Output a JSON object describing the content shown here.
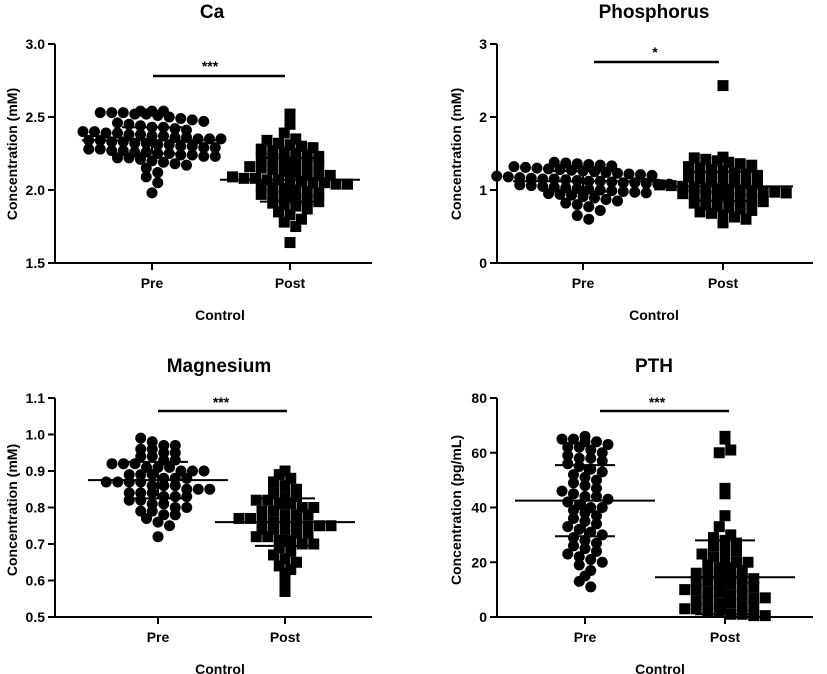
{
  "colors": {
    "marker": "#000000",
    "background": "#ffffff"
  },
  "chart_data": [
    {
      "type": "scatter",
      "title": "Ca",
      "xlabel": "Control",
      "ylabel": "Concentration (mM)",
      "categories": [
        "Pre",
        "Post"
      ],
      "ylim": [
        1.5,
        3.0
      ],
      "yticks": [
        1.5,
        2.0,
        2.5,
        3.0
      ],
      "ytick_labels": [
        "1.5",
        "2.0",
        "2.5",
        "3.0"
      ],
      "markers": [
        "circle",
        "square"
      ],
      "significance": "***",
      "series": [
        {
          "name": "Pre",
          "mean": 2.34,
          "sd": 0.09,
          "values": [
            2.54,
            2.54,
            2.54,
            2.53,
            2.53,
            2.53,
            2.52,
            2.52,
            2.51,
            2.5,
            2.49,
            2.48,
            2.47,
            2.46,
            2.45,
            2.44,
            2.43,
            2.43,
            2.42,
            2.41,
            2.4,
            2.4,
            2.39,
            2.39,
            2.38,
            2.38,
            2.37,
            2.37,
            2.36,
            2.36,
            2.35,
            2.35,
            2.35,
            2.34,
            2.34,
            2.33,
            2.33,
            2.32,
            2.32,
            2.31,
            2.31,
            2.3,
            2.3,
            2.29,
            2.29,
            2.28,
            2.28,
            2.27,
            2.27,
            2.26,
            2.26,
            2.25,
            2.25,
            2.24,
            2.24,
            2.23,
            2.23,
            2.22,
            2.22,
            2.21,
            2.2,
            2.19,
            2.18,
            2.17,
            2.15,
            2.12,
            2.09,
            2.05,
            1.98
          ]
        },
        {
          "name": "Post",
          "mean": 2.07,
          "sd": 0.15,
          "values": [
            2.52,
            2.45,
            2.39,
            2.35,
            2.34,
            2.32,
            2.31,
            2.3,
            2.29,
            2.28,
            2.27,
            2.26,
            2.25,
            2.24,
            2.23,
            2.22,
            2.21,
            2.2,
            2.19,
            2.18,
            2.17,
            2.16,
            2.15,
            2.14,
            2.13,
            2.12,
            2.11,
            2.1,
            2.1,
            2.09,
            2.08,
            2.08,
            2.07,
            2.07,
            2.06,
            2.06,
            2.05,
            2.05,
            2.04,
            2.04,
            2.03,
            2.02,
            2.01,
            2.0,
            1.99,
            1.98,
            1.97,
            1.96,
            1.95,
            1.94,
            1.93,
            1.92,
            1.91,
            1.9,
            1.89,
            1.87,
            1.85,
            1.83,
            1.8,
            1.78,
            1.75,
            1.64
          ]
        }
      ]
    },
    {
      "type": "scatter",
      "title": "Phosphorus",
      "xlabel": "Control",
      "ylabel": "Concentration (mM)",
      "categories": [
        "Pre",
        "Post"
      ],
      "ylim": [
        0,
        3
      ],
      "yticks": [
        0,
        1,
        2,
        3
      ],
      "ytick_labels": [
        "0",
        "1",
        "2",
        "3"
      ],
      "markers": [
        "circle",
        "square"
      ],
      "significance": "*",
      "series": [
        {
          "name": "Pre",
          "mean": 1.12,
          "sd": 0.14,
          "values": [
            1.38,
            1.37,
            1.36,
            1.35,
            1.34,
            1.33,
            1.32,
            1.31,
            1.3,
            1.29,
            1.28,
            1.27,
            1.26,
            1.25,
            1.24,
            1.23,
            1.22,
            1.21,
            1.2,
            1.19,
            1.18,
            1.17,
            1.16,
            1.15,
            1.15,
            1.14,
            1.13,
            1.12,
            1.12,
            1.11,
            1.1,
            1.1,
            1.09,
            1.08,
            1.08,
            1.07,
            1.06,
            1.05,
            1.04,
            1.03,
            1.02,
            1.01,
            1.0,
            0.99,
            0.98,
            0.97,
            0.96,
            0.95,
            0.94,
            0.93,
            0.91,
            0.89,
            0.87,
            0.85,
            0.82,
            0.8,
            0.77,
            0.72,
            0.65,
            0.6
          ]
        },
        {
          "name": "Post",
          "mean": 1.05,
          "sd": 0.2,
          "values": [
            2.43,
            1.45,
            1.44,
            1.42,
            1.4,
            1.38,
            1.36,
            1.34,
            1.32,
            1.3,
            1.28,
            1.26,
            1.24,
            1.22,
            1.2,
            1.18,
            1.16,
            1.14,
            1.12,
            1.1,
            1.09,
            1.08,
            1.07,
            1.06,
            1.05,
            1.04,
            1.03,
            1.02,
            1.01,
            1.0,
            0.99,
            0.98,
            0.97,
            0.96,
            0.95,
            0.94,
            0.93,
            0.92,
            0.9,
            0.88,
            0.86,
            0.84,
            0.82,
            0.8,
            0.78,
            0.76,
            0.74,
            0.72,
            0.7,
            0.68,
            0.66,
            0.63,
            0.6,
            0.55
          ]
        }
      ]
    },
    {
      "type": "scatter",
      "title": "Magnesium",
      "xlabel": "Control",
      "ylabel": "Concentration (mM)",
      "categories": [
        "Pre",
        "Post"
      ],
      "ylim": [
        0.5,
        1.1
      ],
      "yticks": [
        0.5,
        0.6,
        0.7,
        0.8,
        0.9,
        1.0,
        1.1
      ],
      "ytick_labels": [
        "0.5",
        "0.6",
        "0.7",
        "0.8",
        "0.9",
        "1.0",
        "1.1"
      ],
      "markers": [
        "circle",
        "square"
      ],
      "significance": "***",
      "series": [
        {
          "name": "Pre",
          "mean": 0.875,
          "sd": 0.05,
          "values": [
            0.99,
            0.98,
            0.97,
            0.97,
            0.96,
            0.96,
            0.95,
            0.95,
            0.94,
            0.94,
            0.93,
            0.93,
            0.92,
            0.92,
            0.92,
            0.91,
            0.91,
            0.91,
            0.9,
            0.9,
            0.9,
            0.89,
            0.89,
            0.89,
            0.88,
            0.88,
            0.88,
            0.87,
            0.87,
            0.87,
            0.87,
            0.86,
            0.86,
            0.86,
            0.85,
            0.85,
            0.85,
            0.84,
            0.84,
            0.84,
            0.83,
            0.83,
            0.83,
            0.82,
            0.82,
            0.81,
            0.81,
            0.8,
            0.8,
            0.79,
            0.79,
            0.78,
            0.78,
            0.77,
            0.76,
            0.75,
            0.72
          ]
        },
        {
          "name": "Post",
          "mean": 0.76,
          "sd": 0.065,
          "values": [
            0.9,
            0.89,
            0.88,
            0.87,
            0.86,
            0.85,
            0.84,
            0.83,
            0.83,
            0.82,
            0.82,
            0.81,
            0.81,
            0.8,
            0.8,
            0.79,
            0.79,
            0.78,
            0.78,
            0.78,
            0.77,
            0.77,
            0.77,
            0.76,
            0.76,
            0.76,
            0.75,
            0.75,
            0.75,
            0.74,
            0.74,
            0.74,
            0.73,
            0.73,
            0.72,
            0.72,
            0.71,
            0.71,
            0.7,
            0.7,
            0.69,
            0.68,
            0.67,
            0.66,
            0.65,
            0.64,
            0.63,
            0.62,
            0.6,
            0.57
          ]
        }
      ]
    },
    {
      "type": "scatter",
      "title": "PTH",
      "xlabel": "Control",
      "ylabel": "Concentration (pg/mL)",
      "categories": [
        "Pre",
        "Post"
      ],
      "ylim": [
        0,
        80
      ],
      "yticks": [
        0,
        20,
        40,
        60,
        80
      ],
      "ytick_labels": [
        "0",
        "20",
        "40",
        "60",
        "80"
      ],
      "markers": [
        "circle",
        "square"
      ],
      "significance": "***",
      "series": [
        {
          "name": "Pre",
          "mean": 42.5,
          "sd": 13.0,
          "values": [
            66,
            65,
            65,
            64,
            64,
            63,
            62,
            62,
            61,
            60,
            59,
            58,
            58,
            57,
            56,
            55,
            54,
            53,
            52,
            51,
            50,
            49,
            48,
            47,
            46,
            45,
            44,
            44,
            43,
            42,
            41,
            40,
            40,
            39,
            38,
            37,
            36,
            35,
            34,
            33,
            32,
            31,
            30,
            29,
            28,
            27,
            26,
            25,
            24,
            23,
            22,
            21,
            20,
            19,
            17,
            15,
            13,
            11
          ]
        },
        {
          "name": "Post",
          "mean": 14.5,
          "sd": 13.5,
          "values": [
            66,
            65,
            60,
            61,
            47,
            45,
            37,
            33,
            30,
            29,
            28,
            27,
            26,
            25,
            24,
            23,
            22,
            21,
            20,
            20,
            19,
            18,
            18,
            17,
            16,
            16,
            15,
            15,
            14,
            14,
            13,
            13,
            12,
            12,
            11,
            11,
            10,
            10,
            9,
            9,
            8,
            8,
            7,
            7,
            6,
            6,
            5,
            5,
            4,
            4,
            3,
            3,
            2,
            2,
            1,
            1,
            0.5,
            0.5
          ]
        }
      ]
    }
  ]
}
